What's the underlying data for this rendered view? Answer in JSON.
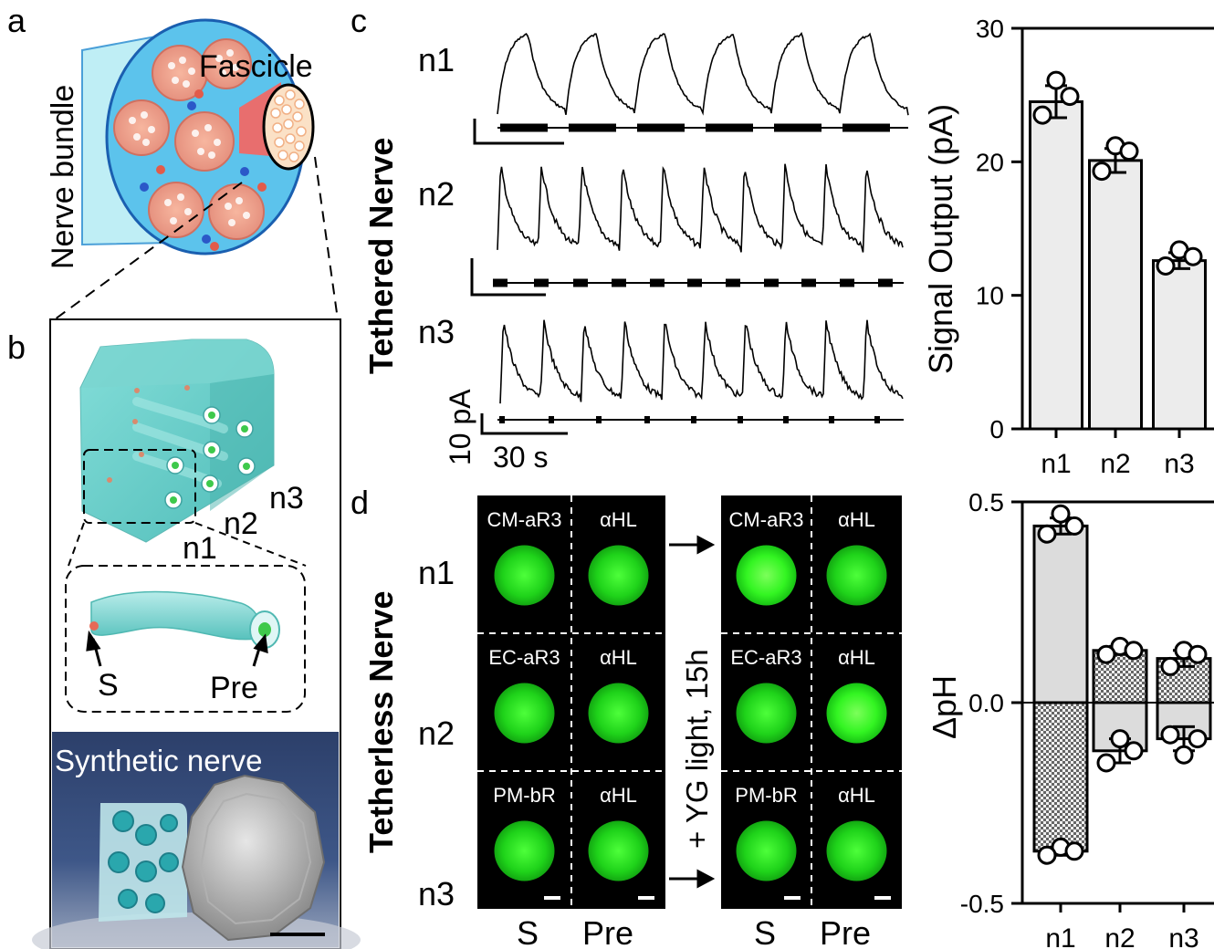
{
  "panel_letters": [
    "a",
    "b",
    "c",
    "d"
  ],
  "panel_a": {
    "label_bundle": "Nerve bundle",
    "label_fascicle": "Fascicle"
  },
  "panel_b": {
    "channel_labels": [
      "n1",
      "n2",
      "n3"
    ],
    "tube_labels": [
      "S",
      "Pre"
    ],
    "photo_caption": "Synthetic nerve"
  },
  "panel_c": {
    "group_label": "Tethered Nerve",
    "trace_labels": [
      "n1",
      "n2",
      "n3"
    ],
    "scale_y": "10 pA",
    "scale_x": "30 s"
  },
  "panel_d": {
    "group_label": "Tetherless Nerve",
    "row_labels": [
      "n1",
      "n2",
      "n3"
    ],
    "before": [
      [
        "CM-aR3",
        "αHL"
      ],
      [
        "EC-aR3",
        "αHL"
      ],
      [
        "PM-bR",
        "αHL"
      ]
    ],
    "after": [
      [
        "CM-aR3",
        "αHL"
      ],
      [
        "EC-aR3",
        "αHL"
      ],
      [
        "PM-bR",
        "αHL"
      ]
    ],
    "arrow_text": "+ YG light, 15h",
    "col_labels": [
      "S",
      "Pre"
    ]
  },
  "chart_data": [
    {
      "type": "bar",
      "categories": [
        "n1",
        "n2",
        "n3"
      ],
      "values": [
        24.5,
        20.1,
        12.6
      ],
      "errors": [
        1.2,
        0.9,
        0.6
      ],
      "points": [
        [
          26.1,
          23.5,
          24.9
        ],
        [
          21.2,
          19.3,
          20.8
        ],
        [
          13.4,
          12.2,
          12.9
        ]
      ],
      "ylabel": "Signal Output (pA)",
      "ylim": [
        0,
        30
      ],
      "yticks": [
        0,
        10,
        20,
        30
      ]
    },
    {
      "type": "bar",
      "categories": [
        "n1",
        "n2",
        "n3"
      ],
      "series": [
        {
          "values": [
            0.44,
            0.13,
            0.11
          ],
          "errors": [
            0.02,
            0.01,
            0.02
          ],
          "points": [
            [
              0.47,
              0.42,
              0.44
            ],
            [
              0.14,
              0.12,
              0.13
            ],
            [
              0.13,
              0.09,
              0.12
            ]
          ]
        },
        {
          "values": [
            -0.37,
            -0.12,
            -0.09
          ],
          "errors": [
            0.01,
            0.03,
            0.03
          ],
          "points": [
            [
              -0.36,
              -0.38,
              -0.37
            ],
            [
              -0.09,
              -0.15,
              -0.12
            ],
            [
              -0.13,
              -0.08,
              -0.09
            ]
          ]
        }
      ],
      "ylabel": "ΔpH",
      "ylim": [
        -0.5,
        0.5
      ],
      "yticks": [
        -0.5,
        0.0,
        0.5
      ],
      "ytick_labels": [
        "-0.5",
        "0.0",
        "0.5"
      ]
    }
  ]
}
